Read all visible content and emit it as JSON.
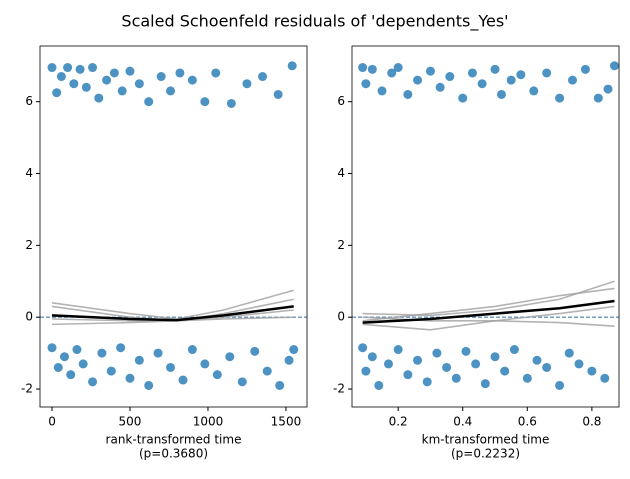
{
  "title": "Scaled Schoenfeld residuals of 'dependents_Yes'",
  "chart_data": [
    {
      "type": "scatter",
      "xlabel": [
        "rank-transformed time",
        "(p=0.3680)"
      ],
      "xlim": [
        -77,
        1635
      ],
      "ylim": [
        -2.5,
        7.55
      ],
      "xticks": [
        0,
        500,
        1000,
        1500
      ],
      "yticks": [
        -2,
        0,
        2,
        4,
        6
      ],
      "reference_line": {
        "y": 0,
        "color": "#4a7eb0"
      },
      "series": [
        {
          "kind": "scatter",
          "color": "#1f77b4",
          "x": [
            0,
            30,
            60,
            100,
            140,
            180,
            220,
            260,
            300,
            350,
            400,
            450,
            500,
            560,
            620,
            700,
            760,
            820,
            900,
            980,
            1050,
            1150,
            1250,
            1350,
            1450,
            1540,
            0,
            40,
            80,
            120,
            160,
            200,
            260,
            320,
            380,
            440,
            500,
            560,
            620,
            680,
            760,
            840,
            900,
            980,
            1060,
            1140,
            1220,
            1300,
            1380,
            1460,
            1520,
            1550
          ],
          "values": [
            6.95,
            6.25,
            6.7,
            6.95,
            6.5,
            6.9,
            6.4,
            6.95,
            6.1,
            6.6,
            6.8,
            6.3,
            6.85,
            6.5,
            6.0,
            6.7,
            6.3,
            6.8,
            6.6,
            6.0,
            6.8,
            5.95,
            6.5,
            6.7,
            6.2,
            7.0,
            -0.85,
            -1.4,
            -1.1,
            -1.6,
            -0.9,
            -1.3,
            -1.8,
            -1.0,
            -1.5,
            -0.85,
            -1.7,
            -1.2,
            -1.9,
            -1.0,
            -1.4,
            -1.75,
            -0.9,
            -1.3,
            -1.6,
            -1.1,
            -1.8,
            -0.95,
            -1.5,
            -1.9,
            -1.2,
            -0.9
          ]
        },
        {
          "kind": "line",
          "color": "#a0a0a0",
          "x": [
            0,
            500,
            800,
            1100,
            1550
          ],
          "values": [
            0.4,
            0.1,
            -0.05,
            0.2,
            0.75
          ]
        },
        {
          "kind": "line",
          "color": "#a0a0a0",
          "x": [
            0,
            500,
            800,
            1100,
            1550
          ],
          "values": [
            -0.2,
            -0.15,
            -0.1,
            0.0,
            0.2
          ]
        },
        {
          "kind": "line",
          "color": "#a0a0a0",
          "x": [
            0,
            500,
            800,
            1100,
            1550
          ],
          "values": [
            0.3,
            0.0,
            -0.1,
            0.1,
            0.5
          ]
        },
        {
          "kind": "line",
          "color": "#a0a0a0",
          "x": [
            0,
            500,
            800,
            1100,
            1550
          ],
          "values": [
            -0.05,
            -0.1,
            -0.1,
            -0.05,
            0.0
          ]
        },
        {
          "kind": "line",
          "color": "#000000",
          "x": [
            0,
            500,
            800,
            1100,
            1550
          ],
          "values": [
            0.05,
            -0.05,
            -0.08,
            0.05,
            0.3
          ]
        }
      ]
    },
    {
      "type": "scatter",
      "xlabel": [
        "km-transformed time",
        "(p=0.2232)"
      ],
      "xlim": [
        0.057,
        0.884
      ],
      "ylim": [
        -2.5,
        7.55
      ],
      "xticks": [
        0.2,
        0.4,
        0.6,
        0.8
      ],
      "yticks": [
        -2,
        0,
        2,
        4,
        6
      ],
      "reference_line": {
        "y": 0,
        "color": "#4a7eb0"
      },
      "series": [
        {
          "kind": "scatter",
          "color": "#1f77b4",
          "x": [
            0.09,
            0.1,
            0.12,
            0.15,
            0.18,
            0.2,
            0.23,
            0.26,
            0.3,
            0.33,
            0.36,
            0.4,
            0.43,
            0.46,
            0.5,
            0.52,
            0.55,
            0.58,
            0.62,
            0.66,
            0.7,
            0.74,
            0.78,
            0.82,
            0.85,
            0.87,
            0.09,
            0.1,
            0.12,
            0.14,
            0.17,
            0.2,
            0.23,
            0.26,
            0.29,
            0.32,
            0.35,
            0.38,
            0.41,
            0.44,
            0.47,
            0.5,
            0.53,
            0.56,
            0.6,
            0.63,
            0.66,
            0.7,
            0.73,
            0.76,
            0.8,
            0.84
          ],
          "values": [
            6.95,
            6.5,
            6.9,
            6.3,
            6.8,
            6.95,
            6.2,
            6.6,
            6.85,
            6.4,
            6.7,
            6.1,
            6.8,
            6.5,
            6.9,
            6.2,
            6.6,
            6.75,
            6.3,
            6.8,
            6.1,
            6.6,
            6.9,
            6.1,
            6.35,
            7.0,
            -0.85,
            -1.5,
            -1.1,
            -1.9,
            -1.3,
            -0.9,
            -1.6,
            -1.2,
            -1.8,
            -1.0,
            -1.4,
            -1.7,
            -0.95,
            -1.3,
            -1.85,
            -1.1,
            -1.5,
            -0.9,
            -1.7,
            -1.2,
            -1.4,
            -1.9,
            -1.0,
            -1.3,
            -1.5,
            -1.7
          ]
        },
        {
          "kind": "line",
          "color": "#a0a0a0",
          "x": [
            0.09,
            0.3,
            0.5,
            0.7,
            0.87
          ],
          "values": [
            0.1,
            0.05,
            0.2,
            0.5,
            1.0
          ]
        },
        {
          "kind": "line",
          "color": "#a0a0a0",
          "x": [
            0.09,
            0.3,
            0.5,
            0.7,
            0.87
          ],
          "values": [
            -0.2,
            -0.35,
            -0.1,
            0.1,
            0.3
          ]
        },
        {
          "kind": "line",
          "color": "#a0a0a0",
          "x": [
            0.09,
            0.3,
            0.5,
            0.7,
            0.87
          ],
          "values": [
            0.0,
            -0.1,
            -0.1,
            -0.15,
            -0.25
          ]
        },
        {
          "kind": "line",
          "color": "#a0a0a0",
          "x": [
            0.09,
            0.3,
            0.5,
            0.7,
            0.87
          ],
          "values": [
            -0.1,
            0.1,
            0.3,
            0.6,
            0.8
          ]
        },
        {
          "kind": "line",
          "color": "#000000",
          "x": [
            0.09,
            0.3,
            0.5,
            0.7,
            0.87
          ],
          "values": [
            -0.15,
            -0.05,
            0.1,
            0.25,
            0.45
          ]
        }
      ]
    }
  ]
}
